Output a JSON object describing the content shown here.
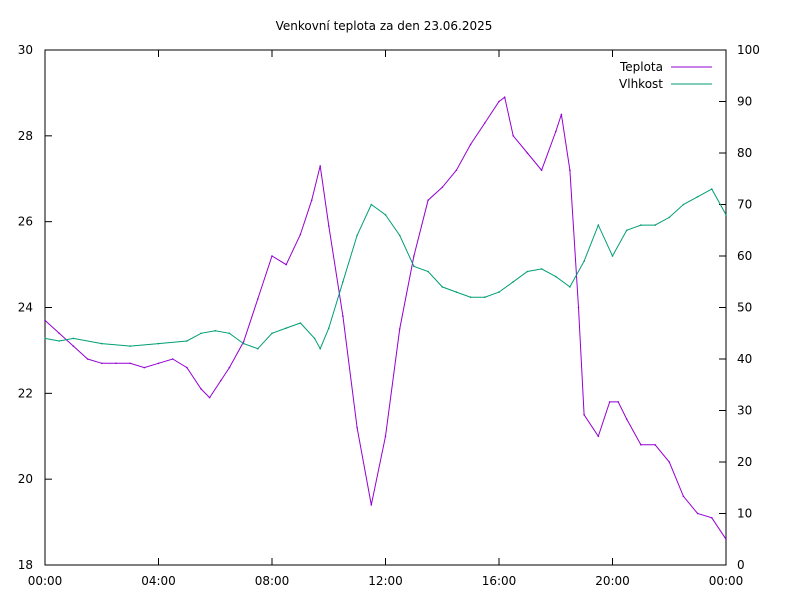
{
  "chart_data": {
    "type": "line",
    "title": "Venkovní teplota za den 23.06.2025",
    "xlabel": "",
    "ylabel": "",
    "y2label": "",
    "x_ticks": [
      "00:00",
      "04:00",
      "08:00",
      "12:00",
      "16:00",
      "20:00",
      "00:00"
    ],
    "xlim_hours": [
      0,
      24
    ],
    "ylim": [
      18,
      30
    ],
    "y_ticks": [
      18,
      20,
      22,
      24,
      26,
      28,
      30
    ],
    "y2lim": [
      0,
      100
    ],
    "y2_ticks": [
      0,
      10,
      20,
      30,
      40,
      50,
      60,
      70,
      80,
      90,
      100
    ],
    "grid": false,
    "legend_position": "top-right",
    "series": [
      {
        "name": "Teplota",
        "axis": "left",
        "color": "#9400d3",
        "x": [
          0,
          0.5,
          1,
          1.5,
          2,
          2.5,
          3,
          3.5,
          4,
          4.5,
          5,
          5.5,
          5.8,
          6.2,
          6.5,
          7,
          7.5,
          8,
          8.5,
          9,
          9.4,
          9.7,
          10,
          10.5,
          11,
          11.5,
          12,
          12.5,
          13,
          13.5,
          14,
          14.5,
          15,
          15.5,
          16,
          16.2,
          16.5,
          17,
          17.5,
          18,
          18.2,
          18.5,
          18.8,
          19,
          19.5,
          19.9,
          20.2,
          20.5,
          21,
          21.5,
          22,
          22.5,
          23,
          23.5,
          24
        ],
        "values": [
          23.7,
          23.4,
          23.1,
          22.8,
          22.7,
          22.7,
          22.7,
          22.6,
          22.7,
          22.8,
          22.6,
          22.1,
          21.9,
          22.3,
          22.6,
          23.2,
          24.2,
          25.2,
          25.0,
          25.7,
          26.5,
          27.3,
          25.9,
          23.8,
          21.2,
          19.4,
          21.0,
          23.5,
          25.2,
          26.5,
          26.8,
          27.2,
          27.8,
          28.3,
          28.8,
          28.9,
          28.0,
          27.6,
          27.2,
          28.1,
          28.5,
          27.2,
          24.0,
          21.5,
          21.0,
          21.8,
          21.8,
          21.4,
          20.8,
          20.8,
          20.4,
          19.6,
          19.2,
          19.1,
          18.6
        ]
      },
      {
        "name": "Vlhkost",
        "axis": "right",
        "color": "#009e73",
        "x": [
          0,
          0.5,
          1,
          2,
          3,
          4,
          5,
          5.5,
          6,
          6.5,
          7,
          7.5,
          8,
          8.5,
          9,
          9.5,
          9.7,
          10,
          10.5,
          11,
          11.5,
          12,
          12.5,
          13,
          13.5,
          14,
          14.5,
          15,
          15.5,
          16,
          16.5,
          17,
          17.5,
          18,
          18.5,
          19,
          19.5,
          20,
          20.5,
          21,
          21.5,
          22,
          22.5,
          23,
          23.5,
          24
        ],
        "values": [
          44.0,
          43.5,
          44.0,
          43.0,
          42.5,
          43.0,
          43.5,
          45.0,
          45.5,
          45.0,
          43.0,
          42.0,
          45.0,
          46.0,
          47.0,
          44.0,
          42.0,
          46.0,
          55.0,
          64.0,
          70.0,
          68.0,
          64.0,
          58.0,
          57.0,
          54.0,
          53.0,
          52.0,
          52.0,
          53.0,
          55.0,
          57.0,
          57.5,
          56.0,
          54.0,
          59.0,
          66.0,
          60.0,
          65.0,
          66.0,
          66.0,
          67.5,
          70.0,
          71.5,
          73.0,
          68.0
        ]
      }
    ]
  }
}
